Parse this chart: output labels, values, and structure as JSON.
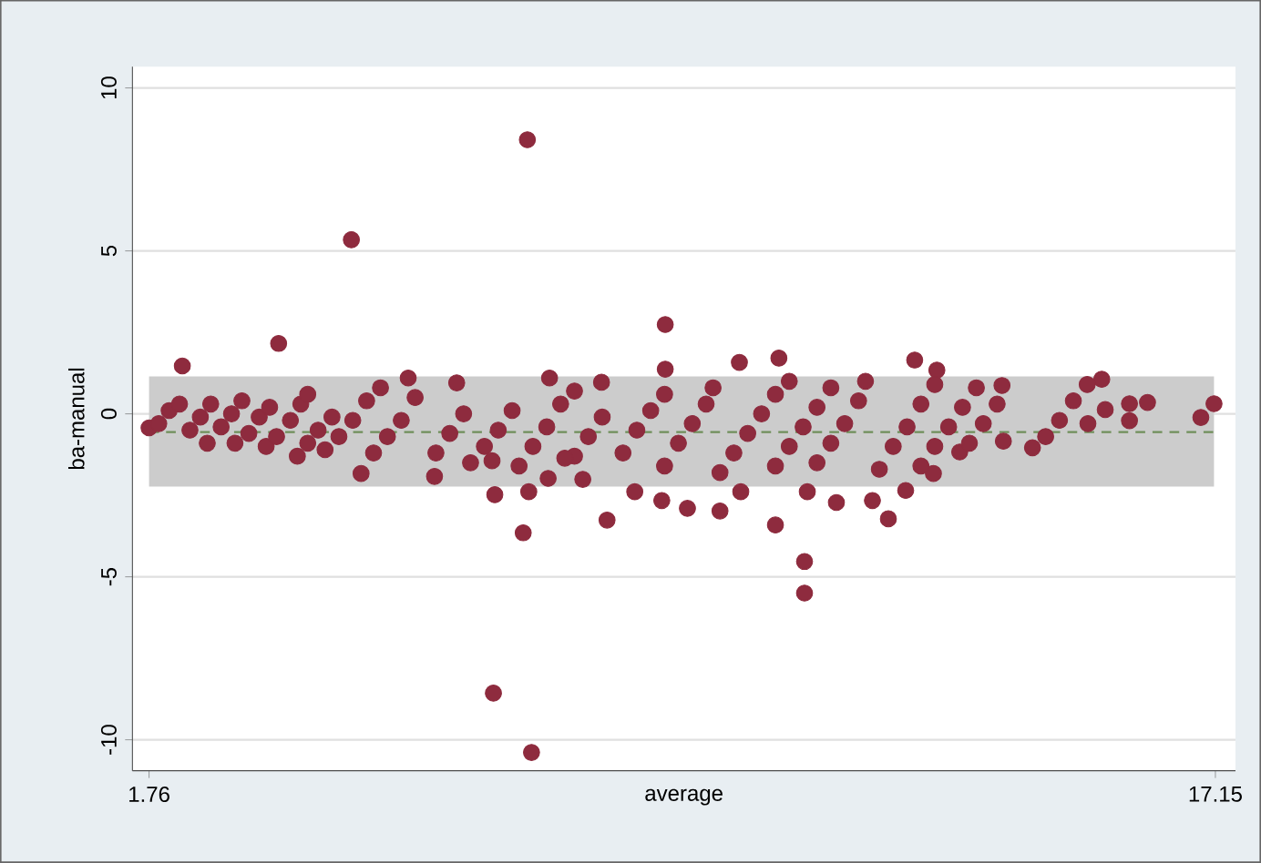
{
  "chart_data": {
    "type": "scatter",
    "xlabel": "average",
    "ylabel": "ba-manual",
    "xlim": [
      1.52,
      17.44
    ],
    "ylim": [
      -10.95,
      10.65
    ],
    "xticks": [
      1.76,
      17.15
    ],
    "yticks": [
      10,
      5,
      0,
      -5,
      -10
    ],
    "grid": "y",
    "marker": "circle",
    "bands": [
      {
        "axis": "y",
        "from": -2.23,
        "to": 1.15,
        "color": "#cccccc"
      }
    ],
    "ref_lines": [
      {
        "axis": "y",
        "value": -0.56,
        "color": "#6f8f5a",
        "line_style": "dashed"
      }
    ],
    "series": [
      {
        "color": "#8e2b3e",
        "x": [
          1.76,
          2.24,
          3.63,
          4.68,
          6.73,
          7.22,
          7.28,
          9.21,
          11.22,
          11.22,
          10.8,
          7.16,
          8.37,
          9.53,
          10.0,
          10.28,
          10.85,
          7.54,
          12.81,
          13.13,
          12.43,
          12.2,
          13.08,
          12.68,
          17.13,
          16.94,
          16.17,
          15.91,
          15.91,
          15.56,
          15.31,
          15.51,
          14.51,
          14.09,
          13.46,
          1.9,
          2.05,
          2.2,
          2.35,
          2.5,
          2.65,
          2.6,
          2.8,
          2.95,
          3.1,
          3.0,
          3.2,
          3.35,
          3.5,
          3.45,
          3.6,
          3.8,
          3.95,
          4.05,
          3.9,
          4.05,
          4.2,
          4.4,
          4.3,
          4.5,
          4.7,
          4.9,
          5.1,
          5.5,
          4.82,
          5.0,
          5.2,
          5.4,
          5.6,
          5.88,
          5.9,
          6.1,
          6.3,
          6.2,
          6.75,
          6.4,
          6.6,
          6.8,
          7.0,
          6.71,
          7.24,
          7.1,
          7.3,
          7.5,
          7.7,
          7.9,
          7.52,
          7.9,
          8.1,
          8.3,
          8.29,
          7.76,
          8.02,
          8.6,
          8.8,
          9.0,
          9.2,
          8.77,
          9.2,
          9.4,
          9.6,
          9.8,
          9.9,
          9.21,
          9.16,
          10.0,
          10.2,
          10.4,
          10.6,
          10.8,
          11.0,
          10.3,
          10.8,
          11.0,
          11.2,
          11.4,
          11.6,
          11.26,
          11.4,
          11.6,
          11.8,
          12.0,
          12.1,
          11.68,
          12.3,
          12.5,
          12.7,
          12.9,
          13.1,
          12.9,
          13.1,
          13.3,
          13.5,
          13.7,
          13.6,
          13.8,
          14.0,
          14.07,
          14.7,
          14.9,
          15.1,
          15.3
        ],
        "values": [
          -0.43,
          1.47,
          2.16,
          5.34,
          -8.57,
          8.41,
          -10.39,
          2.74,
          -4.53,
          -5.5,
          -3.41,
          -3.65,
          -3.26,
          -2.9,
          -2.98,
          1.58,
          1.71,
          1.1,
          1.65,
          1.34,
          -3.22,
          -2.66,
          -1.83,
          -2.35,
          0.31,
          -0.11,
          0.35,
          0.31,
          -0.21,
          0.13,
          -0.3,
          1.06,
          -1.04,
          -0.84,
          -1.17,
          -0.3,
          0.1,
          0.3,
          -0.5,
          -0.1,
          0.3,
          -0.9,
          -0.4,
          0.0,
          0.4,
          -0.9,
          -0.6,
          -0.1,
          0.2,
          -1.0,
          -0.7,
          -0.2,
          0.3,
          0.6,
          -1.3,
          -0.9,
          -0.5,
          -0.1,
          -1.1,
          -0.7,
          -0.2,
          0.4,
          0.8,
          1.1,
          -1.83,
          -1.2,
          -0.7,
          -0.2,
          0.5,
          -1.92,
          -1.2,
          -0.6,
          0.0,
          0.95,
          -2.48,
          -1.5,
          -1.0,
          -0.5,
          0.1,
          -1.44,
          -2.39,
          -1.6,
          -1.0,
          -0.4,
          0.3,
          0.7,
          -1.98,
          -1.3,
          -0.7,
          -0.1,
          0.97,
          -1.36,
          -2.01,
          -1.2,
          -0.5,
          0.1,
          0.6,
          -2.39,
          -1.6,
          -0.9,
          -0.3,
          0.3,
          0.8,
          1.37,
          -2.66,
          -1.8,
          -1.2,
          -0.6,
          0.0,
          0.6,
          1.0,
          -2.39,
          -1.6,
          -1.0,
          -0.4,
          0.2,
          0.8,
          -2.39,
          -1.5,
          -0.9,
          -0.3,
          0.4,
          1.0,
          -2.72,
          -1.7,
          -1.0,
          -0.4,
          0.3,
          0.9,
          -1.6,
          -1.0,
          -0.4,
          0.2,
          0.8,
          -0.9,
          -0.3,
          0.3,
          0.87,
          -0.7,
          -0.2,
          0.4,
          0.9
        ]
      }
    ]
  }
}
